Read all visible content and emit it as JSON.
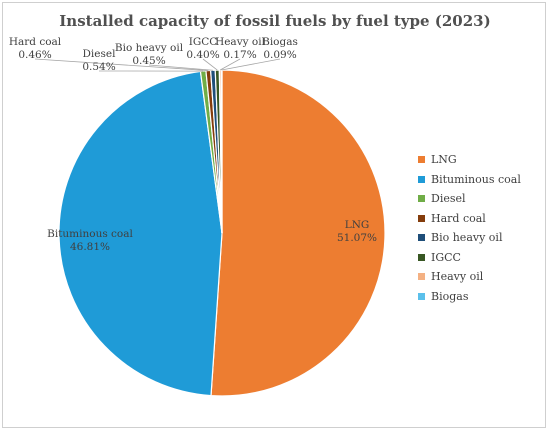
{
  "chart_data": {
    "type": "pie",
    "title": "Installed capacity of fossil fuels by fuel type (2023)",
    "slices": [
      {
        "label": "LNG",
        "value": 51.07,
        "display": "51.07%",
        "color": "#ED7D31"
      },
      {
        "label": "Bituminous coal",
        "value": 46.81,
        "display": "46.81%",
        "color": "#1F9BD7"
      },
      {
        "label": "Diesel",
        "value": 0.54,
        "display": "0.54%",
        "color": "#70AD47"
      },
      {
        "label": "Hard coal",
        "value": 0.46,
        "display": "0.46%",
        "color": "#843C0C"
      },
      {
        "label": "Bio heavy oil",
        "value": 0.45,
        "display": "0.45%",
        "color": "#1F4E79"
      },
      {
        "label": "IGCC",
        "value": 0.4,
        "display": "0.40%",
        "color": "#385723"
      },
      {
        "label": "Heavy oil",
        "value": 0.17,
        "display": "0.17%",
        "color": "#F4B183"
      },
      {
        "label": "Biogas",
        "value": 0.09,
        "display": "0.09%",
        "color": "#5BC0EB"
      }
    ],
    "legend_position": "right"
  }
}
